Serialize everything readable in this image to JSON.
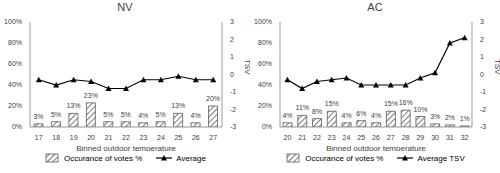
{
  "chart_data": [
    {
      "type": "bar",
      "title": "NV",
      "x_label": "Binned outdoor temperature",
      "y2_label": "TSV",
      "categories": [
        17,
        18,
        19,
        20,
        21,
        22,
        23,
        24,
        25,
        26,
        27
      ],
      "series": [
        {
          "name": "Occurance of votes %",
          "type": "bar",
          "color": "#595959",
          "values": [
            3,
            5,
            13,
            23,
            5,
            5,
            4,
            5,
            13,
            4,
            20
          ],
          "value_labels": [
            "3%",
            "5%",
            "13%",
            "23%",
            "5%",
            "5%",
            "4%",
            "5%",
            "13%",
            "4%",
            "20%"
          ]
        },
        {
          "name": "Average",
          "type": "line",
          "axis": "y2",
          "color": "#000000",
          "marker": "triangle",
          "values": [
            -0.3,
            -0.6,
            -0.3,
            -0.4,
            -0.8,
            -0.8,
            -0.3,
            -0.3,
            -0.1,
            -0.3,
            -0.3
          ]
        }
      ],
      "ylim": [
        0,
        100
      ],
      "yticks": [
        {
          "value": 0,
          "label": "0%"
        },
        {
          "value": 20,
          "label": "20%"
        },
        {
          "value": 40,
          "label": "40%"
        },
        {
          "value": 60,
          "label": "60%"
        },
        {
          "value": 80,
          "label": "80%"
        },
        {
          "value": 100,
          "label": "100%"
        }
      ],
      "y2lim": [
        -3,
        3
      ],
      "y2ticks": [
        -3,
        -2,
        -1,
        0,
        1,
        2,
        3
      ],
      "legend": "bottom",
      "data_labels": true
    },
    {
      "type": "bar",
      "title": "AC",
      "x_label": "Binned outdoor temperature",
      "y2_label": "TSV",
      "categories": [
        20,
        21,
        22,
        23,
        24,
        25,
        26,
        27,
        28,
        29,
        30,
        31,
        32
      ],
      "series": [
        {
          "name": "Occurance of votes %",
          "type": "bar",
          "color": "#595959",
          "values": [
            4,
            11,
            8,
            15,
            4,
            6,
            4,
            15,
            16,
            10,
            3,
            2,
            1
          ],
          "value_labels": [
            "4%",
            "11%",
            "8%",
            "15%",
            "4%",
            "6%",
            "4%",
            "15%",
            "16%",
            "10%",
            "3%",
            "2%",
            "1%"
          ]
        },
        {
          "name": "Average TSV",
          "type": "line",
          "axis": "y2",
          "color": "#000000",
          "marker": "triangle",
          "values": [
            -0.3,
            -0.8,
            -0.4,
            -0.3,
            -0.2,
            -0.6,
            -0.6,
            -0.6,
            -0.6,
            -0.2,
            0.1,
            1.8,
            2.1
          ]
        }
      ],
      "ylim": [
        0,
        100
      ],
      "yticks": [
        {
          "value": 0,
          "label": "0%"
        },
        {
          "value": 20,
          "label": "20%"
        },
        {
          "value": 40,
          "label": "40%"
        },
        {
          "value": 60,
          "label": "60%"
        },
        {
          "value": 80,
          "label": "80%"
        },
        {
          "value": 100,
          "label": "100%"
        }
      ],
      "y2lim": [
        -3,
        3
      ],
      "y2ticks": [
        -3,
        -2,
        -1,
        0,
        1,
        2,
        3
      ],
      "legend": "bottom",
      "data_labels": true
    }
  ]
}
